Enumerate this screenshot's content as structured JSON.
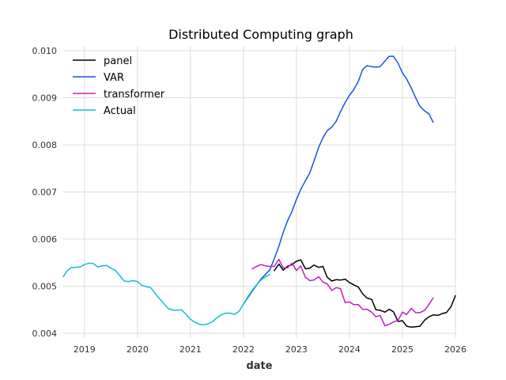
{
  "chart_data": {
    "type": "line",
    "title": "Distributed Computing graph",
    "xlabel": "date",
    "ylabel": "",
    "xlim": [
      2018.6,
      2026.0
    ],
    "ylim": [
      0.0039,
      0.0101
    ],
    "x_ticks": [
      2019,
      2020,
      2021,
      2022,
      2023,
      2024,
      2025,
      2026
    ],
    "y_ticks": [
      0.004,
      0.005,
      0.006,
      0.007,
      0.008,
      0.009,
      0.01
    ],
    "y_tick_labels": [
      "0.004",
      "0.005",
      "0.006",
      "0.007",
      "0.008",
      "0.009",
      "0.010"
    ],
    "grid": true,
    "legend_position": "top-left",
    "series": [
      {
        "name": "panel",
        "color": "#000000",
        "x": [
          2022.58,
          2022.67,
          2022.75,
          2022.83,
          2022.92,
          2023.0,
          2023.08,
          2023.17,
          2023.25,
          2023.33,
          2023.42,
          2023.5,
          2023.58,
          2023.67,
          2023.75,
          2023.83,
          2023.92,
          2024.0,
          2024.08,
          2024.17,
          2024.25,
          2024.33,
          2024.42,
          2024.5,
          2024.58,
          2024.67,
          2024.75,
          2024.83,
          2024.92,
          2025.0,
          2025.08,
          2025.17,
          2025.25,
          2025.33,
          2025.42,
          2025.5,
          2025.58,
          2025.67,
          2025.75,
          2025.83,
          2025.92,
          2026.0
        ],
        "y": [
          0.00533,
          0.00547,
          0.00534,
          0.00542,
          0.00546,
          0.00553,
          0.00556,
          0.00537,
          0.00538,
          0.00545,
          0.0054,
          0.00542,
          0.00519,
          0.00511,
          0.00514,
          0.00513,
          0.00515,
          0.00508,
          0.00503,
          0.00498,
          0.00484,
          0.00475,
          0.00472,
          0.0045,
          0.00449,
          0.00445,
          0.00451,
          0.00446,
          0.00425,
          0.00427,
          0.00415,
          0.00413,
          0.00414,
          0.00415,
          0.00428,
          0.00435,
          0.00439,
          0.00438,
          0.00442,
          0.00444,
          0.00457,
          0.0048
        ]
      },
      {
        "name": "VAR",
        "color": "#1653e6",
        "x": [
          2022.0,
          2022.17,
          2022.33,
          2022.5,
          2022.58,
          2022.67,
          2022.75,
          2022.83,
          2022.92,
          2023.0,
          2023.08,
          2023.17,
          2023.25,
          2023.33,
          2023.42,
          2023.5,
          2023.58,
          2023.67,
          2023.75,
          2023.83,
          2023.92,
          2024.0,
          2024.08,
          2024.17,
          2024.25,
          2024.33,
          2024.42,
          2024.5,
          2024.58,
          2024.67,
          2024.75,
          2024.83,
          2024.92,
          2025.0,
          2025.08,
          2025.17,
          2025.25,
          2025.33,
          2025.42,
          2025.5,
          2025.58
        ],
        "y": [
          0.00462,
          0.0049,
          0.00515,
          0.00535,
          0.00558,
          0.00585,
          0.00614,
          0.00638,
          0.0066,
          0.00684,
          0.00705,
          0.00724,
          0.0074,
          0.00765,
          0.00795,
          0.00815,
          0.0083,
          0.00838,
          0.0085,
          0.0087,
          0.0089,
          0.00905,
          0.00917,
          0.00935,
          0.0096,
          0.00968,
          0.00966,
          0.00965,
          0.00966,
          0.00978,
          0.00988,
          0.00988,
          0.00973,
          0.00953,
          0.0094,
          0.0092,
          0.009,
          0.00882,
          0.00872,
          0.00866,
          0.00848
        ]
      },
      {
        "name": "transformer",
        "color": "#c020c0",
        "x": [
          2022.17,
          2022.25,
          2022.33,
          2022.42,
          2022.5,
          2022.58,
          2022.67,
          2022.75,
          2022.83,
          2022.92,
          2023.0,
          2023.08,
          2023.17,
          2023.25,
          2023.33,
          2023.42,
          2023.5,
          2023.58,
          2023.67,
          2023.75,
          2023.83,
          2023.92,
          2024.0,
          2024.08,
          2024.17,
          2024.25,
          2024.33,
          2024.42,
          2024.5,
          2024.58,
          2024.67,
          2024.75,
          2024.83,
          2024.92,
          2025.0,
          2025.08,
          2025.17,
          2025.25,
          2025.33,
          2025.42,
          2025.5,
          2025.58
        ],
        "y": [
          0.00537,
          0.00542,
          0.00546,
          0.00543,
          0.00542,
          0.00542,
          0.00557,
          0.00539,
          0.00539,
          0.00549,
          0.00533,
          0.00543,
          0.00519,
          0.00512,
          0.00513,
          0.0052,
          0.00509,
          0.00505,
          0.00491,
          0.00497,
          0.00495,
          0.00465,
          0.00467,
          0.00461,
          0.00461,
          0.00451,
          0.00451,
          0.00445,
          0.00435,
          0.00438,
          0.00416,
          0.00419,
          0.00424,
          0.00428,
          0.00445,
          0.0044,
          0.00453,
          0.00444,
          0.00444,
          0.00449,
          0.00461,
          0.00475
        ]
      },
      {
        "name": "Actual",
        "color": "#17becf",
        "x": [
          2018.6,
          2018.67,
          2018.75,
          2018.83,
          2018.92,
          2019.0,
          2019.08,
          2019.17,
          2019.25,
          2019.33,
          2019.42,
          2019.5,
          2019.58,
          2019.67,
          2019.75,
          2019.83,
          2019.92,
          2020.0,
          2020.08,
          2020.17,
          2020.25,
          2020.33,
          2020.42,
          2020.5,
          2020.58,
          2020.67,
          2020.75,
          2020.83,
          2020.92,
          2021.0,
          2021.08,
          2021.17,
          2021.25,
          2021.33,
          2021.42,
          2021.5,
          2021.58,
          2021.67,
          2021.75,
          2021.83,
          2021.92,
          2022.0,
          2022.08,
          2022.17,
          2022.25,
          2022.33,
          2022.42,
          2022.5
        ],
        "y": [
          0.0052,
          0.00532,
          0.0054,
          0.0054,
          0.00541,
          0.00546,
          0.00549,
          0.00548,
          0.00541,
          0.00543,
          0.00544,
          0.00538,
          0.00534,
          0.00522,
          0.00511,
          0.0051,
          0.00512,
          0.0051,
          0.00502,
          0.00499,
          0.00497,
          0.00485,
          0.00473,
          0.00463,
          0.00453,
          0.00449,
          0.00449,
          0.0045,
          0.0044,
          0.0043,
          0.00424,
          0.00419,
          0.00418,
          0.0042,
          0.00425,
          0.00433,
          0.00439,
          0.00443,
          0.00443,
          0.0044,
          0.00447,
          0.00462,
          0.00477,
          0.00492,
          0.00503,
          0.00513,
          0.0052,
          0.00525
        ]
      }
    ]
  }
}
